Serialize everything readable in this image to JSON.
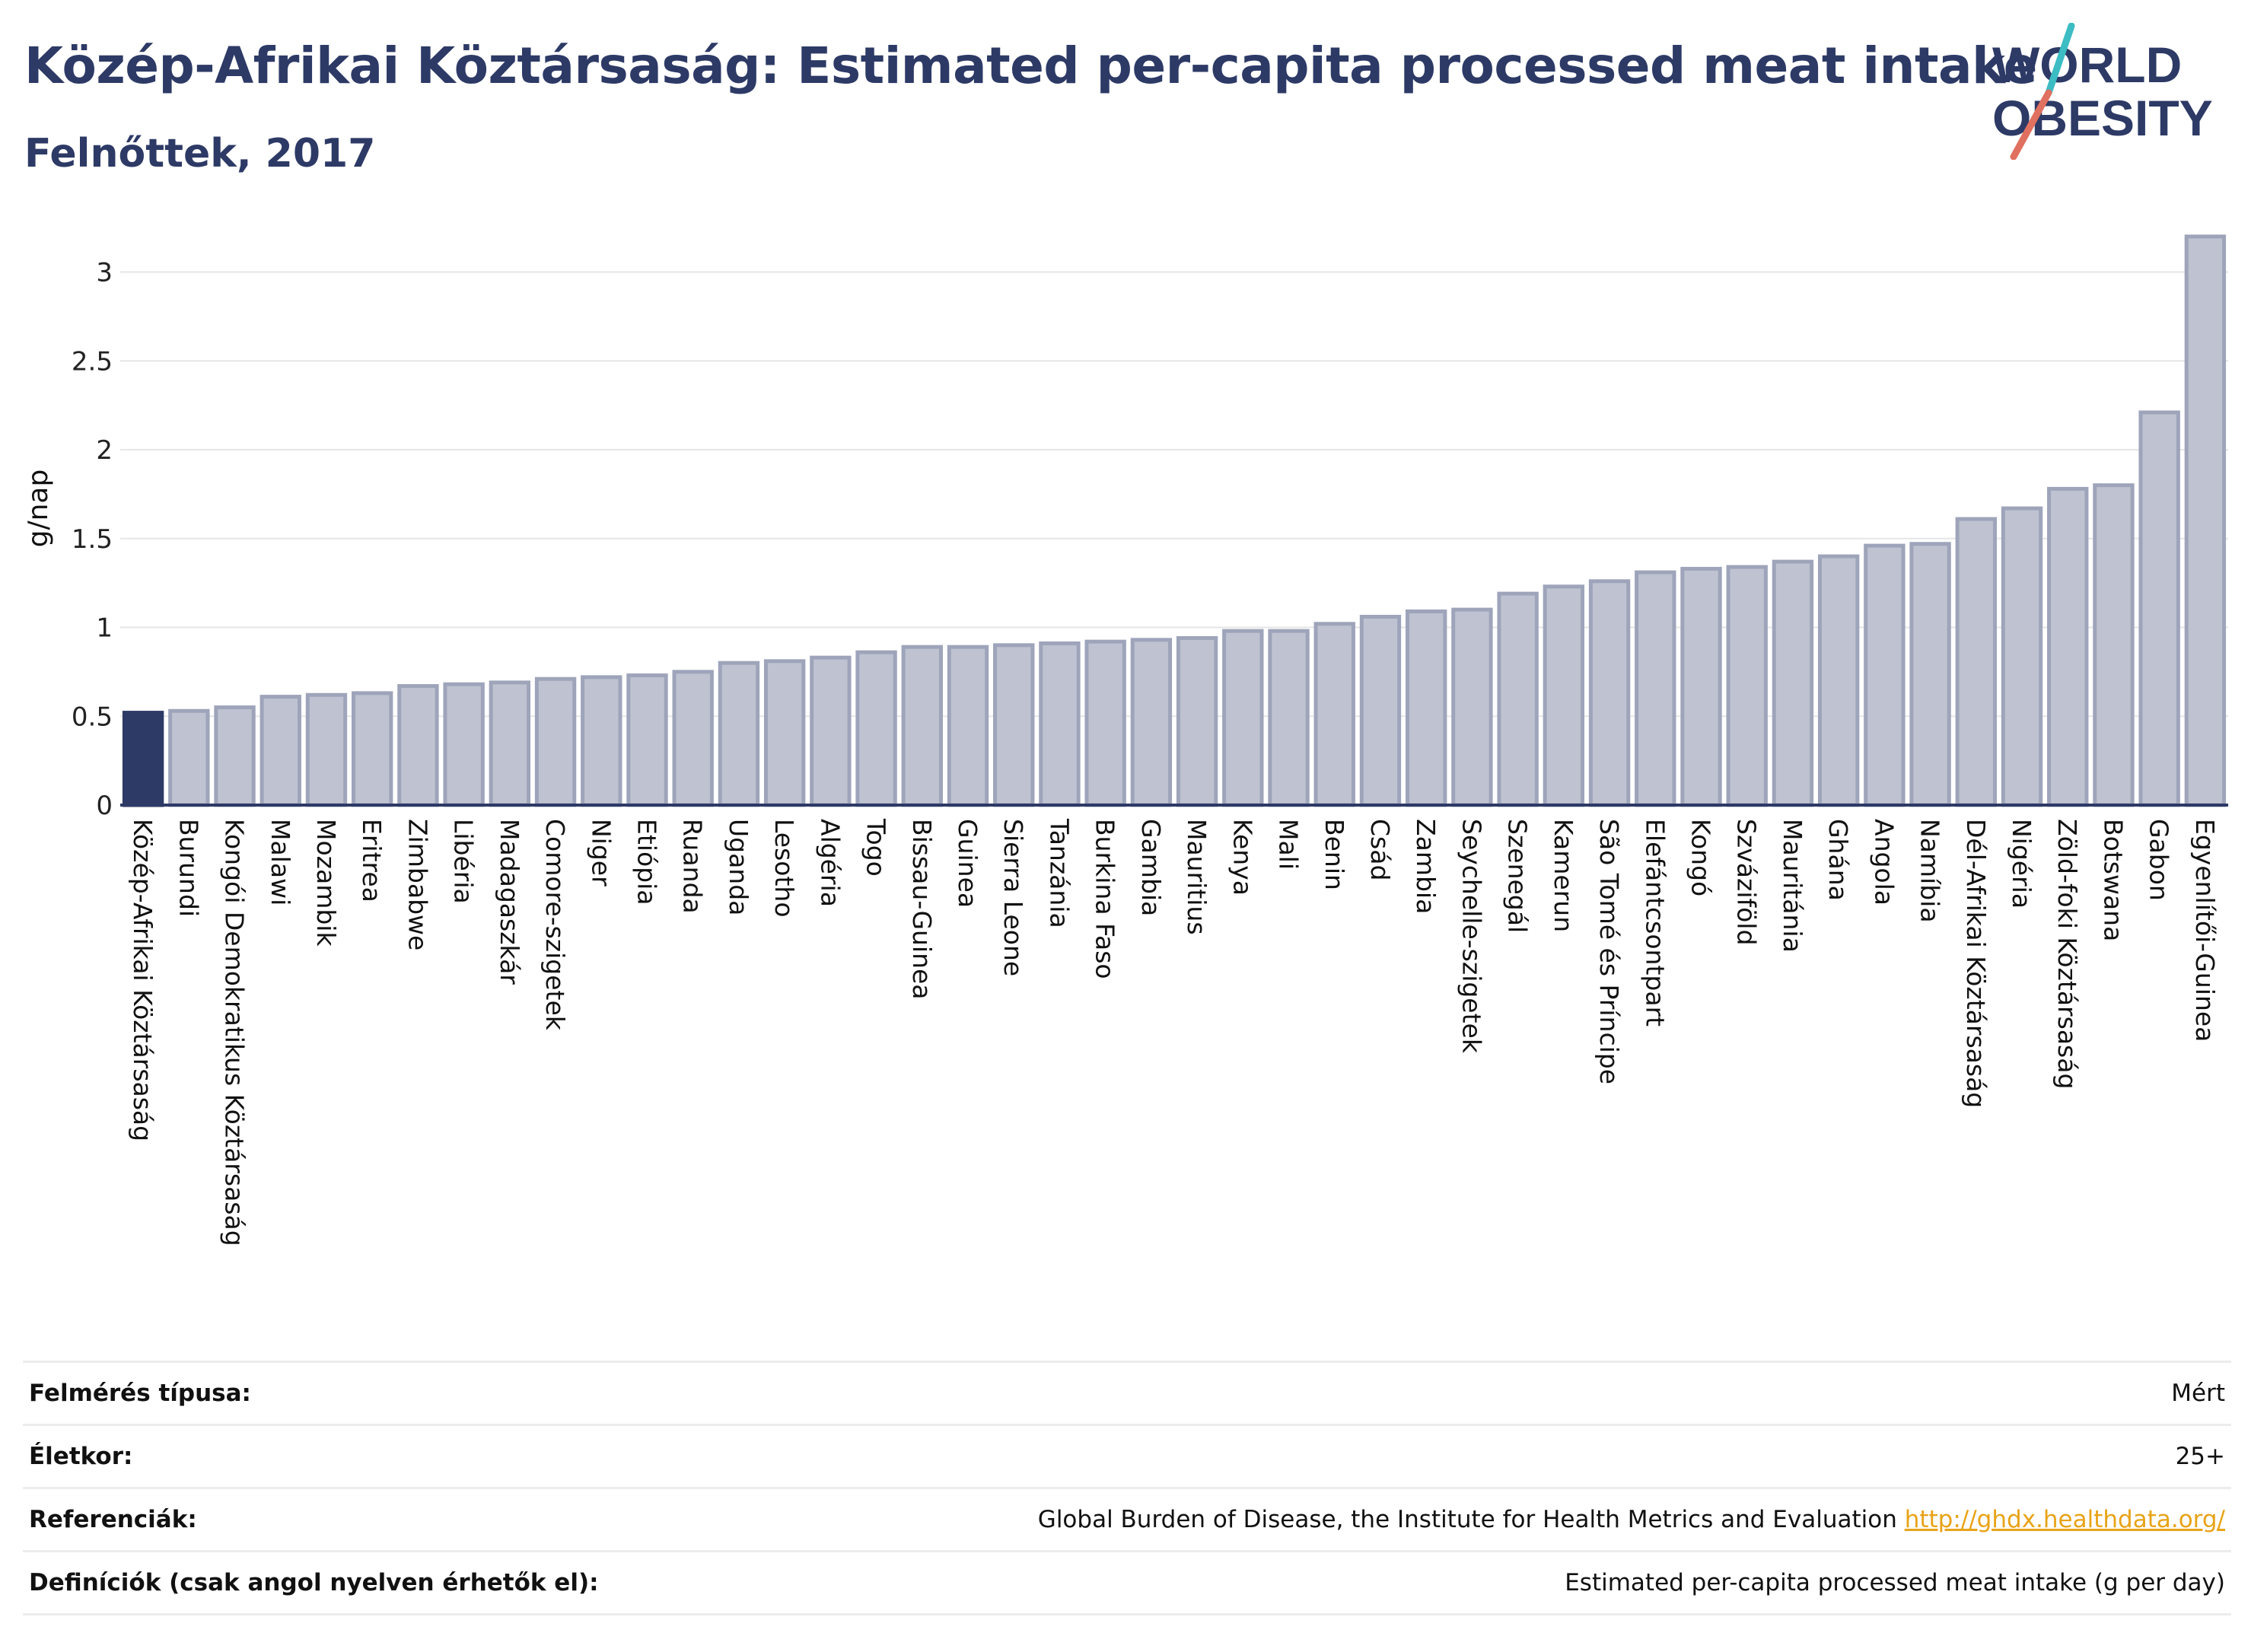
{
  "header": {
    "title": "Közép-Afrikai Köztársaság: Estimated per-capita processed meat intake",
    "subtitle": "Felnőttek, 2017"
  },
  "logo": {
    "line1": "WORLD",
    "line2": "OBESITY",
    "color_text": "#2d3a66",
    "color_slash_top": "#3cbcc3",
    "color_slash_bottom": "#e0705f"
  },
  "chart_data": {
    "type": "bar",
    "ylabel": "g/nap",
    "ylim": [
      0,
      3.3
    ],
    "yticks": [
      0,
      0.5,
      1,
      1.5,
      2,
      2.5,
      3
    ],
    "grid": true,
    "highlight_color": "#2d3a66",
    "bar_color": "#bfc3d1",
    "bar_edge_color": "#9ea4ba",
    "categories": [
      "Közép-Afrikai Köztársaság",
      "Burundi",
      "Kongói Demokratikus Köztársaság",
      "Malawi",
      "Mozambik",
      "Eritrea",
      "Zimbabwe",
      "Libéria",
      "Madagaszkár",
      "Comore-szigetek",
      "Niger",
      "Etiópia",
      "Ruanda",
      "Uganda",
      "Lesotho",
      "Algéria",
      "Togo",
      "Bissau-Guinea",
      "Guinea",
      "Sierra Leone",
      "Tanzánia",
      "Burkina Faso",
      "Gambia",
      "Mauritius",
      "Kenya",
      "Mali",
      "Benin",
      "Csád",
      "Zambia",
      "Seychelle-szigetek",
      "Szenegál",
      "Kamerun",
      "São Tomé és Príncipe",
      "Elefántcsontpart",
      "Kongó",
      "Szváziföld",
      "Mauritánia",
      "Ghána",
      "Angola",
      "Namíbia",
      "Dél-Afrikai Köztársaság",
      "Nigéria",
      "Zöld-foki Köztársaság",
      "Botswana",
      "Gabon",
      "Egyenlítői-Guinea"
    ],
    "values": [
      0.52,
      0.53,
      0.55,
      0.61,
      0.62,
      0.63,
      0.67,
      0.68,
      0.69,
      0.71,
      0.72,
      0.73,
      0.75,
      0.8,
      0.81,
      0.83,
      0.86,
      0.89,
      0.89,
      0.9,
      0.91,
      0.92,
      0.93,
      0.94,
      0.98,
      0.98,
      1.02,
      1.06,
      1.09,
      1.1,
      1.19,
      1.23,
      1.26,
      1.31,
      1.33,
      1.34,
      1.37,
      1.4,
      1.46,
      1.47,
      1.61,
      1.67,
      1.78,
      1.8,
      2.21,
      3.2
    ],
    "highlight_index": 0
  },
  "meta": [
    {
      "label": "Felmérés típusa:",
      "value": "Mért"
    },
    {
      "label": "Életkor:",
      "value": "25+"
    },
    {
      "label": "Referenciák:",
      "value": "Global Burden of Disease, the Institute for Health Metrics and Evaluation",
      "link": "http://ghdx.healthdata.org/"
    },
    {
      "label": "Definíciók (csak angol nyelven érhetők el):",
      "value": "Estimated per-capita processed meat intake (g per day)"
    }
  ]
}
